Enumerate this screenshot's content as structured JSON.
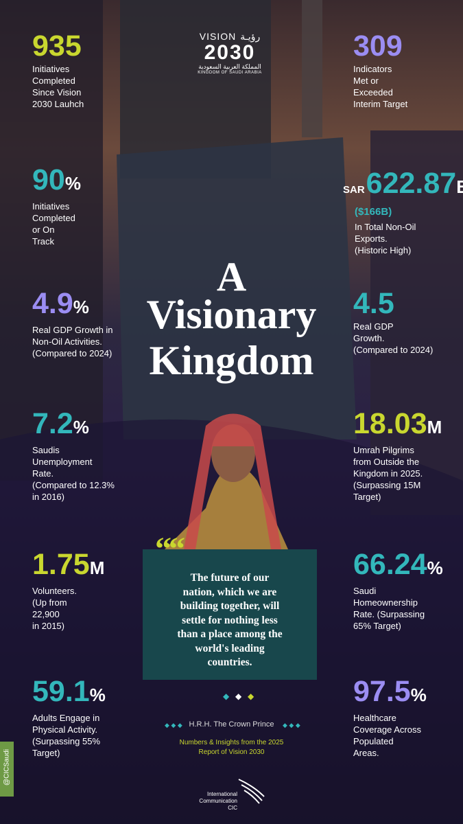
{
  "logo": {
    "word": "VISION",
    "arabic": "رؤيـة",
    "year": "2030",
    "country_ar": "المملكة العربية السعودية",
    "country_en": "KINGDOM OF SAUDI ARABIA"
  },
  "title": {
    "lines": [
      "A",
      "Visionary",
      "Kingdom"
    ]
  },
  "stats": [
    {
      "value": "935",
      "color": "#c9d72f",
      "lines": [
        "Initiatives",
        "Completed",
        "Since Vision",
        "2030 Lauhch"
      ]
    },
    {
      "value": "309",
      "color": "#9b8df2",
      "lines": [
        "Indicators",
        "Met or",
        "Exceeded",
        "Interim Target"
      ]
    },
    {
      "value": "90",
      "unit": "%",
      "color": "#33b7bb",
      "lines": [
        "Initiatives",
        "Completed",
        "or On",
        "Track"
      ]
    },
    {
      "prefix": "SAR",
      "value": "622.87",
      "unit": "B",
      "sub": "($166B)",
      "color": "#33b7bb",
      "lines": [
        "In Total Non-Oil",
        "Exports.",
        "(Historic High)"
      ]
    },
    {
      "value": "4.9",
      "unit": "%",
      "color": "#9b8df2",
      "lines": [
        "Real GDP Growth in",
        "Non-Oil Activities.",
        "(Compared to 2024)"
      ]
    },
    {
      "value": "4.5",
      "color": "#33b7bb",
      "lines": [
        "Real GDP",
        "Growth.",
        "(Compared to 2024)"
      ]
    },
    {
      "value": "7.2",
      "unit": "%",
      "color": "#33b7bb",
      "lines": [
        "Saudis",
        "Unemployment",
        "Rate.",
        "(Compared to 12.3%",
        "in 2016)"
      ]
    },
    {
      "value": "18.03",
      "unit": "M",
      "color": "#c9d72f",
      "lines": [
        "Umrah Pilgrims",
        "from Outside the",
        "Kingdom in 2025.",
        "(Surpassing 15M",
        "Target)"
      ]
    },
    {
      "value": "1.75",
      "unit": "M",
      "color": "#c9d72f",
      "lines": [
        "Volunteers.",
        "(Up from",
        "22,900",
        "in 2015)"
      ]
    },
    {
      "value": "66.24",
      "unit": "%",
      "color": "#33b7bb",
      "lines": [
        "Saudi",
        "Homeownership",
        "Rate. (Surpassing",
        "65% Target)"
      ]
    },
    {
      "value": "59.1",
      "unit": "%",
      "color": "#33b7bb",
      "lines": [
        "Adults Engage in",
        "Physical Activity.",
        "(Surpassing 55%",
        "Target)"
      ]
    },
    {
      "value": "97.5",
      "unit": "%",
      "color": "#9b8df2",
      "lines": [
        "Healthcare",
        "Coverage Across",
        "Populated",
        "Areas."
      ]
    }
  ],
  "quote": {
    "lines": [
      "The future of our",
      "nation, which we are",
      "building together, will",
      "settle for nothing less",
      "than a place among the",
      "world's leading",
      "countries."
    ],
    "attribution": "H.R.H. The Crown Prince"
  },
  "source": {
    "lines": [
      "Numbers & Insights from the 2025",
      "Report of Vision 2030"
    ]
  },
  "footer": {
    "lines": [
      "International",
      "Communication",
      "CIC"
    ],
    "handle": "@CICSaudi"
  }
}
